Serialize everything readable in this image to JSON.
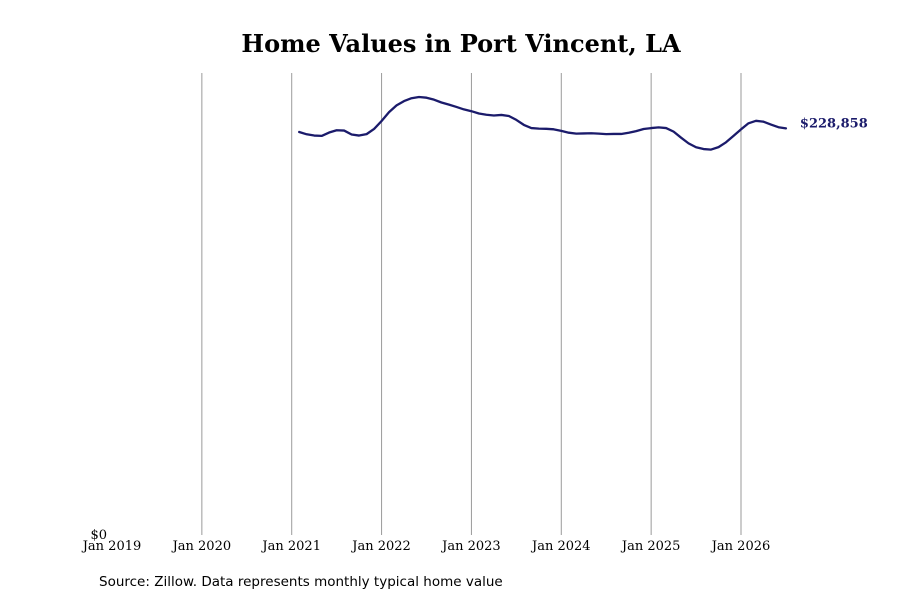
{
  "chart_data": {
    "type": "line",
    "title": "Home Values in Port Vincent, LA",
    "xlabel": "",
    "ylabel": "",
    "x_ticks": [
      "Jan 2019",
      "Jan 2020",
      "Jan 2021",
      "Jan 2022",
      "Jan 2023",
      "Jan 2024",
      "Jan 2025",
      "Jan 2026"
    ],
    "y_tick_label": "$0",
    "ylim": [
      0,
      260000
    ],
    "grid": "vertical",
    "legend": "none",
    "line_color": "#1b1b6b",
    "end_label": "$228,858",
    "series": [
      {
        "points": [
          [
            "2021-02",
            226800
          ],
          [
            "2021-03",
            225500
          ],
          [
            "2021-04",
            224800
          ],
          [
            "2021-05",
            224600
          ],
          [
            "2021-06",
            226500
          ],
          [
            "2021-07",
            227800
          ],
          [
            "2021-08",
            227600
          ],
          [
            "2021-09",
            225400
          ],
          [
            "2021-10",
            224800
          ],
          [
            "2021-11",
            225600
          ],
          [
            "2021-12",
            228500
          ],
          [
            "2022-01",
            233000
          ],
          [
            "2022-02",
            238000
          ],
          [
            "2022-03",
            241800
          ],
          [
            "2022-04",
            244200
          ],
          [
            "2022-05",
            245800
          ],
          [
            "2022-06",
            246500
          ],
          [
            "2022-07",
            246100
          ],
          [
            "2022-08",
            245000
          ],
          [
            "2022-09",
            243400
          ],
          [
            "2022-10",
            242200
          ],
          [
            "2022-11",
            240900
          ],
          [
            "2022-12",
            239500
          ],
          [
            "2023-01",
            238500
          ],
          [
            "2023-02",
            237200
          ],
          [
            "2023-03",
            236500
          ],
          [
            "2023-04",
            236100
          ],
          [
            "2023-05",
            236400
          ],
          [
            "2023-06",
            235800
          ],
          [
            "2023-07",
            233600
          ],
          [
            "2023-08",
            230800
          ],
          [
            "2023-09",
            229000
          ],
          [
            "2023-10",
            228700
          ],
          [
            "2023-11",
            228600
          ],
          [
            "2023-12",
            228300
          ],
          [
            "2024-01",
            227400
          ],
          [
            "2024-02",
            226400
          ],
          [
            "2024-03",
            225900
          ],
          [
            "2024-04",
            226000
          ],
          [
            "2024-05",
            226100
          ],
          [
            "2024-06",
            225900
          ],
          [
            "2024-07",
            225600
          ],
          [
            "2024-08",
            225700
          ],
          [
            "2024-09",
            225700
          ],
          [
            "2024-10",
            226400
          ],
          [
            "2024-11",
            227300
          ],
          [
            "2024-12",
            228500
          ],
          [
            "2025-01",
            229000
          ],
          [
            "2025-02",
            229400
          ],
          [
            "2025-03",
            229000
          ],
          [
            "2025-04",
            227000
          ],
          [
            "2025-05",
            223600
          ],
          [
            "2025-06",
            220400
          ],
          [
            "2025-07",
            218200
          ],
          [
            "2025-08",
            217200
          ],
          [
            "2025-09",
            216900
          ],
          [
            "2025-10",
            218300
          ],
          [
            "2025-11",
            221000
          ],
          [
            "2025-12",
            224600
          ],
          [
            "2026-01",
            228300
          ],
          [
            "2026-02",
            231700
          ],
          [
            "2026-03",
            233100
          ],
          [
            "2026-04",
            232600
          ],
          [
            "2026-05",
            231000
          ],
          [
            "2026-06",
            229500
          ],
          [
            "2026-07",
            228858
          ]
        ]
      }
    ]
  },
  "source_note": "Source: Zillow. Data represents monthly typical home value"
}
